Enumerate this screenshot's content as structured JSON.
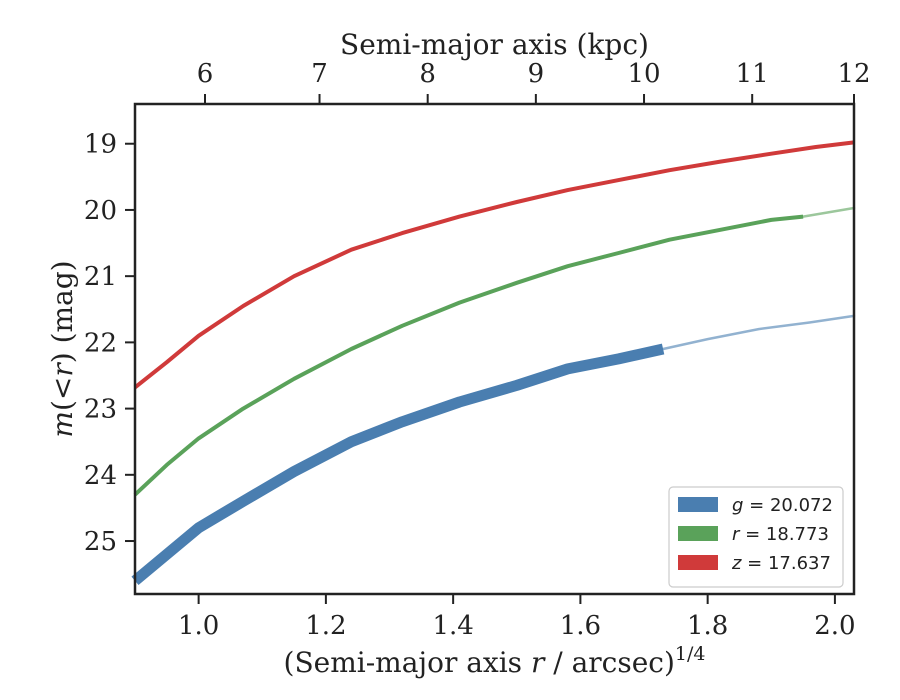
{
  "chart_data": {
    "type": "line",
    "xlabel_prefix": "(Semi-major axis ",
    "xlabel_var": "r",
    "xlabel_mid": " / arcsec)",
    "xlabel_sup": "1/4",
    "ylabel_pre": "m",
    "ylabel_mid": "(<",
    "ylabel_var": "r",
    "ylabel_post": ") (mag)",
    "top_xlabel": "Semi-major axis (kpc)",
    "xlim": [
      0.9,
      2.03
    ],
    "ylim": [
      25.8,
      18.4
    ],
    "y_inverted": true,
    "x_ticks": [
      1.0,
      1.2,
      1.4,
      1.6,
      1.8,
      2.0
    ],
    "x_tick_labels": [
      "1.0",
      "1.2",
      "1.4",
      "1.6",
      "1.8",
      "2.0"
    ],
    "y_ticks": [
      19,
      20,
      21,
      22,
      23,
      24,
      25
    ],
    "y_tick_labels": [
      "19",
      "20",
      "21",
      "22",
      "23",
      "24",
      "25"
    ],
    "top_x_ticks_kpc": [
      6,
      7,
      8,
      9,
      10,
      11,
      12
    ],
    "top_x_tick_labels": [
      "6",
      "7",
      "8",
      "9",
      "10",
      "11",
      "12"
    ],
    "top_x_tick_positions": [
      1.01,
      1.19,
      1.36,
      1.53,
      1.7,
      1.87,
      2.03
    ],
    "legend_position": "lower-right",
    "grid": false,
    "series": [
      {
        "name": "g = 20.072",
        "legend_var": "g",
        "legend_value": "= 20.072",
        "color": "#4a7eb0",
        "solid_x": [
          0.9,
          0.95,
          1.0,
          1.07,
          1.15,
          1.24,
          1.32,
          1.41,
          1.5,
          1.58,
          1.66,
          1.73
        ],
        "solid_y": [
          25.6,
          25.2,
          24.8,
          24.4,
          23.95,
          23.5,
          23.2,
          22.9,
          22.65,
          22.4,
          22.25,
          22.1
        ],
        "extension_x": [
          1.73,
          1.8,
          1.88,
          1.96,
          2.03
        ],
        "extension_y": [
          22.1,
          21.95,
          21.8,
          21.7,
          21.6
        ]
      },
      {
        "name": "r = 18.773",
        "legend_var": "r",
        "legend_value": "= 18.773",
        "color": "#5aa25a",
        "solid_x": [
          0.9,
          0.95,
          1.0,
          1.07,
          1.15,
          1.24,
          1.32,
          1.41,
          1.5,
          1.58,
          1.66,
          1.74,
          1.82,
          1.9,
          1.95
        ],
        "solid_y": [
          24.3,
          23.85,
          23.45,
          23.0,
          22.55,
          22.1,
          21.75,
          21.4,
          21.1,
          20.85,
          20.65,
          20.45,
          20.3,
          20.15,
          20.1
        ],
        "extension_x": [
          1.95,
          2.03
        ],
        "extension_y": [
          20.1,
          19.97
        ]
      },
      {
        "name": "z = 17.637",
        "legend_var": "z",
        "legend_value": "= 17.637",
        "color": "#d03a3a",
        "solid_x": [
          0.9,
          0.95,
          1.0,
          1.07,
          1.15,
          1.24,
          1.32,
          1.41,
          1.5,
          1.58,
          1.66,
          1.74,
          1.82,
          1.9,
          1.97,
          2.03
        ],
        "solid_y": [
          22.68,
          22.3,
          21.9,
          21.45,
          21.0,
          20.6,
          20.35,
          20.1,
          19.88,
          19.7,
          19.55,
          19.4,
          19.27,
          19.15,
          19.05,
          18.98
        ],
        "extension_x": [],
        "extension_y": []
      }
    ]
  }
}
